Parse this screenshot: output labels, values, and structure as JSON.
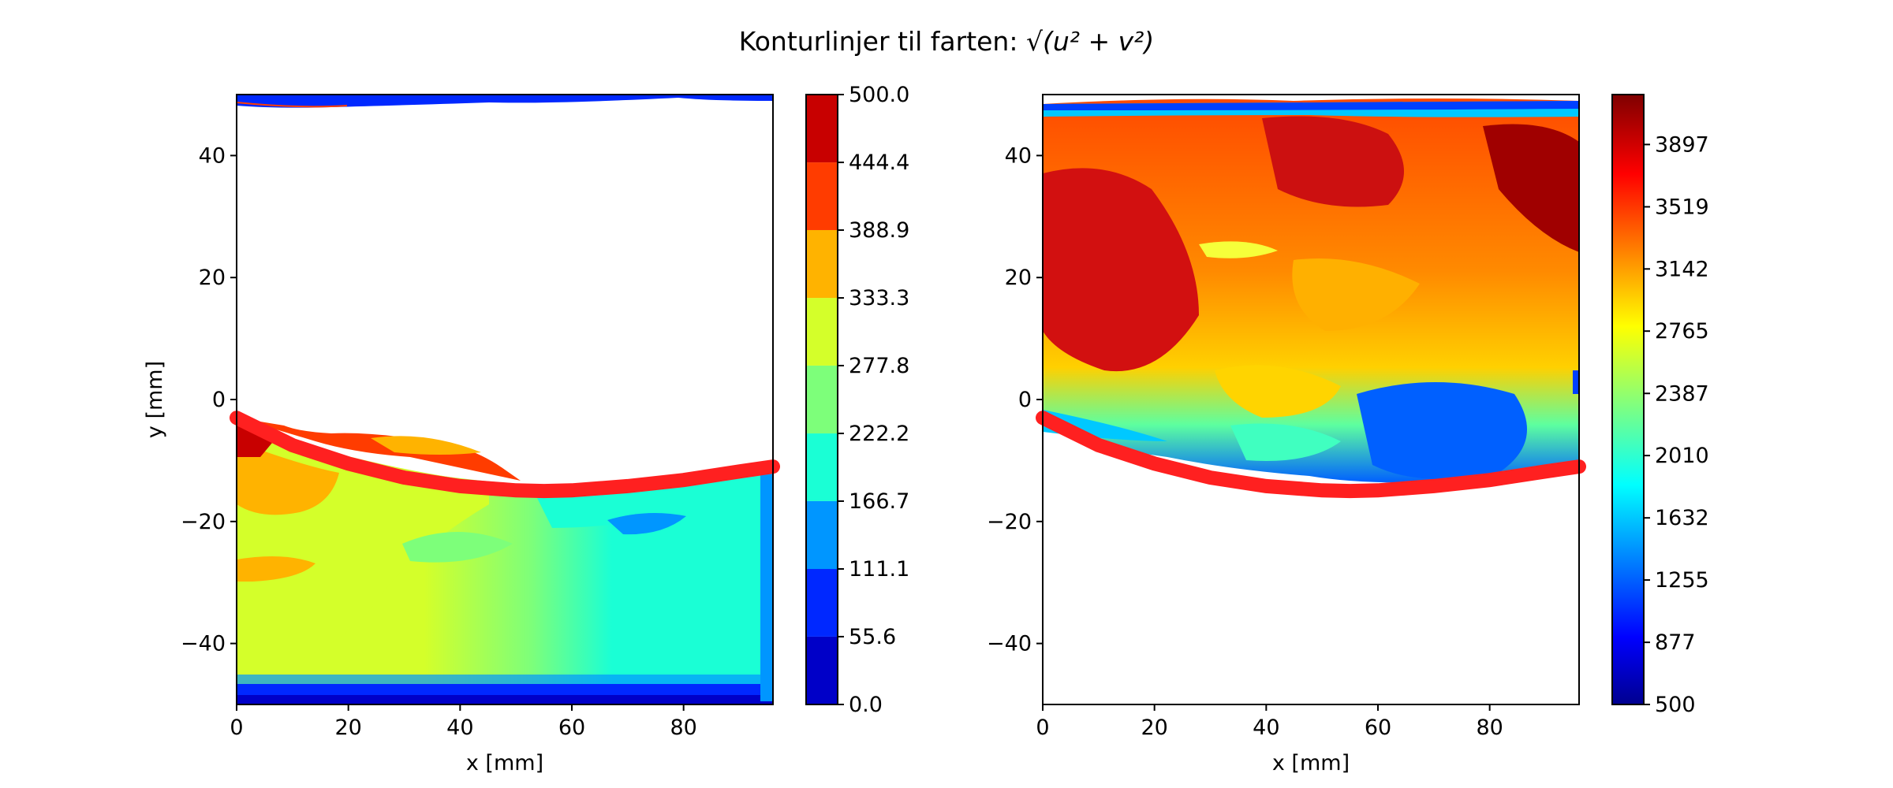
{
  "figure": {
    "title_text": "Konturlinjer til farten: ",
    "title_math": "√(u² + v²)"
  },
  "chart_data": [
    {
      "type": "contour",
      "xlabel": "x [mm]",
      "ylabel": "y [mm]",
      "xlim": [
        0,
        96
      ],
      "ylim": [
        -50,
        50
      ],
      "x_ticks": [
        0,
        20,
        40,
        60,
        80
      ],
      "y_ticks": [
        -40,
        -20,
        0,
        20,
        40
      ],
      "x_tick_labels": [
        "0",
        "20",
        "40",
        "60",
        "80"
      ],
      "y_tick_labels": [
        "−40",
        "−20",
        "0",
        "20",
        "40"
      ],
      "colormap": "jet",
      "colorbar": {
        "min": 0.0,
        "max": 500.0,
        "tick_values": [
          0.0,
          55.6,
          111.1,
          166.7,
          222.2,
          277.8,
          333.3,
          388.9,
          444.4,
          500.0
        ],
        "tick_labels": [
          "0.0",
          "55.6",
          "111.1",
          "166.7",
          "222.2",
          "277.8",
          "333.3",
          "388.9",
          "444.4",
          "500.0"
        ],
        "levels": 9
      },
      "boundary_curve": {
        "color": "#ff2020",
        "x": [
          0,
          10,
          20,
          30,
          40,
          50,
          55,
          60,
          70,
          80,
          90,
          96
        ],
        "y": [
          -3,
          -7.5,
          -10.5,
          -12.8,
          -14.2,
          -14.9,
          -15,
          -14.9,
          -14.2,
          -13.2,
          -11.8,
          -11
        ]
      }
    },
    {
      "type": "contour",
      "xlabel": "x [mm]",
      "ylabel": "",
      "xlim": [
        0,
        96
      ],
      "ylim": [
        -50,
        50
      ],
      "x_ticks": [
        0,
        20,
        40,
        60,
        80
      ],
      "y_ticks": [
        -40,
        -20,
        0,
        20,
        40
      ],
      "x_tick_labels": [
        "0",
        "20",
        "40",
        "60",
        "80"
      ],
      "y_tick_labels": [
        "−40",
        "−20",
        "0",
        "20",
        "40"
      ],
      "colormap": "jet",
      "colorbar": {
        "min": 500,
        "max": 4200,
        "tick_values": [
          500,
          877,
          1255,
          1632,
          2010,
          2387,
          2765,
          3142,
          3519,
          3897
        ],
        "tick_labels": [
          "500",
          "877",
          "1255",
          "1632",
          "2010",
          "2387",
          "2765",
          "3142",
          "3519",
          "3897"
        ],
        "levels": 40
      },
      "boundary_curve": {
        "color": "#ff2020",
        "x": [
          0,
          10,
          20,
          30,
          40,
          50,
          55,
          60,
          70,
          80,
          90,
          96
        ],
        "y": [
          -3,
          -7.5,
          -10.5,
          -12.8,
          -14.2,
          -14.9,
          -15,
          -14.9,
          -14.2,
          -13.2,
          -11.8,
          -11
        ]
      }
    }
  ]
}
